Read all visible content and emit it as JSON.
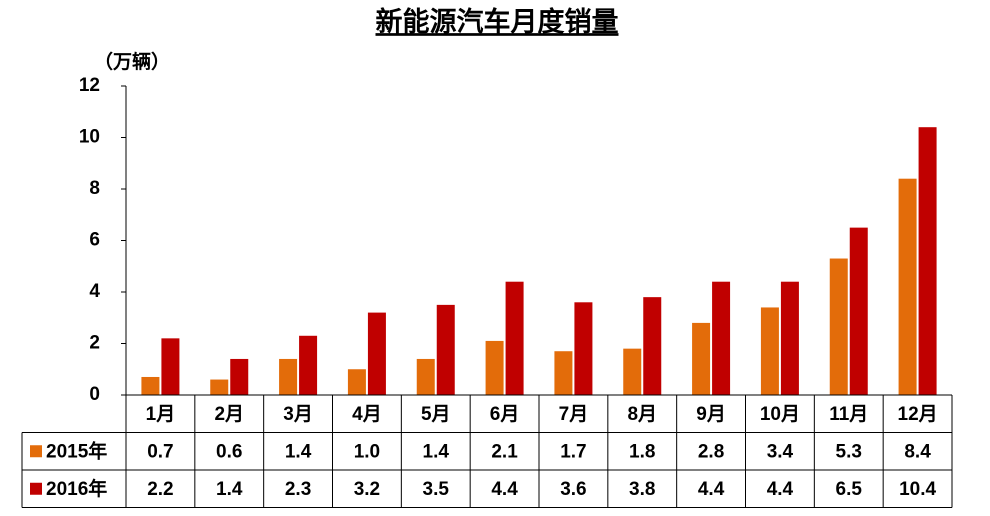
{
  "chart_data": {
    "type": "bar",
    "title": "新能源汽车月度销量",
    "y_unit": "（万辆）",
    "categories": [
      "1月",
      "2月",
      "3月",
      "4月",
      "5月",
      "6月",
      "7月",
      "8月",
      "9月",
      "10月",
      "11月",
      "12月"
    ],
    "series": [
      {
        "name": "2015年",
        "color": "#e36c0a",
        "values": [
          0.7,
          0.6,
          1.4,
          1.0,
          1.4,
          2.1,
          1.7,
          1.8,
          2.8,
          3.4,
          5.3,
          8.4
        ],
        "value_labels": [
          "0.7",
          "0.6",
          "1.4",
          "1.0",
          "1.4",
          "2.1",
          "1.7",
          "1.8",
          "2.8",
          "3.4",
          "5.3",
          "8.4"
        ]
      },
      {
        "name": "2016年",
        "color": "#c00000",
        "values": [
          2.2,
          1.4,
          2.3,
          3.2,
          3.5,
          4.4,
          3.6,
          3.8,
          4.4,
          4.4,
          6.5,
          10.4
        ],
        "value_labels": [
          "2.2",
          "1.4",
          "2.3",
          "3.2",
          "3.5",
          "4.4",
          "3.6",
          "3.8",
          "4.4",
          "4.4",
          "6.5",
          "10.4"
        ]
      }
    ],
    "ylim": [
      0,
      12
    ],
    "yticks": [
      0,
      2,
      4,
      6,
      8,
      10,
      12
    ],
    "grid": false,
    "data_table": true
  }
}
